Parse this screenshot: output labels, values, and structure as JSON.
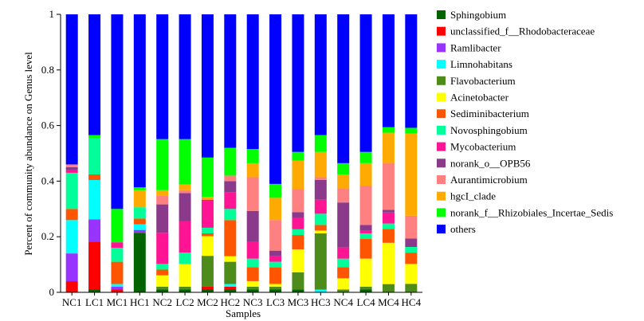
{
  "chart_data": {
    "type": "bar",
    "stacked": true,
    "xlabel": "Samples",
    "ylabel": "Percent of community abundance on Genus level",
    "ylim": [
      0,
      1
    ],
    "yticks": [
      0,
      0.2,
      0.4,
      0.6,
      0.8,
      1
    ],
    "ytick_labels": [
      "0",
      "0.2",
      "0.4",
      "0.6",
      "0.8",
      "1"
    ],
    "legend_position": "right",
    "categories": [
      "NC1",
      "LC1",
      "MC1",
      "HC1",
      "NC2",
      "LC2",
      "MC2",
      "HC2",
      "NC3",
      "LC3",
      "MC3",
      "HC3",
      "NC4",
      "LC4",
      "MC4",
      "HC4"
    ],
    "series": [
      {
        "name": "Sphingobium",
        "color": "#006400",
        "values": [
          0.0,
          0.01,
          0.0,
          0.21,
          0.01,
          0.01,
          0.01,
          0.01,
          0.01,
          0.01,
          0.01,
          0.0,
          0.0,
          0.01,
          0.0,
          0.0
        ]
      },
      {
        "name": "unclassified_f__Rhodobacteraceae",
        "color": "#ff0000",
        "values": [
          0.04,
          0.17,
          0.01,
          0.0,
          0.0,
          0.0,
          0.01,
          0.01,
          0.0,
          0.0,
          0.0,
          0.0,
          0.0,
          0.0,
          0.0,
          0.0
        ]
      },
      {
        "name": "Ramlibacter",
        "color": "#9933ff",
        "values": [
          0.1,
          0.08,
          0.01,
          0.01,
          0.0,
          0.0,
          0.0,
          0.0,
          0.0,
          0.0,
          0.0,
          0.0,
          0.0,
          0.0,
          0.0,
          0.0
        ]
      },
      {
        "name": "Limnohabitans",
        "color": "#00ffff",
        "values": [
          0.12,
          0.14,
          0.01,
          0.02,
          0.0,
          0.0,
          0.0,
          0.01,
          0.0,
          0.0,
          0.0,
          0.01,
          0.0,
          0.0,
          0.0,
          0.0
        ]
      },
      {
        "name": "Flavobacterium",
        "color": "#4d8c1a",
        "values": [
          0.0,
          0.0,
          0.0,
          0.0,
          0.01,
          0.01,
          0.11,
          0.08,
          0.01,
          0.01,
          0.06,
          0.2,
          0.01,
          0.01,
          0.03,
          0.03
        ]
      },
      {
        "name": "Acinetobacter",
        "color": "#ffff00",
        "values": [
          0.0,
          0.0,
          0.0,
          0.0,
          0.04,
          0.08,
          0.07,
          0.02,
          0.02,
          0.01,
          0.08,
          0.01,
          0.04,
          0.1,
          0.15,
          0.07
        ]
      },
      {
        "name": "Sediminibacterium",
        "color": "#ff5500",
        "values": [
          0.04,
          0.02,
          0.08,
          0.02,
          0.02,
          0.0,
          0.01,
          0.13,
          0.05,
          0.06,
          0.05,
          0.02,
          0.04,
          0.07,
          0.05,
          0.04
        ]
      },
      {
        "name": "Novosphingobium",
        "color": "#00ff99",
        "values": [
          0.13,
          0.13,
          0.05,
          0.04,
          0.02,
          0.04,
          0.02,
          0.04,
          0.03,
          0.02,
          0.02,
          0.04,
          0.03,
          0.02,
          0.02,
          0.02
        ]
      },
      {
        "name": "Mycobacterium",
        "color": "#ff1493",
        "values": [
          0.01,
          0.0,
          0.02,
          0.0,
          0.11,
          0.11,
          0.1,
          0.06,
          0.06,
          0.02,
          0.04,
          0.05,
          0.04,
          0.01,
          0.04,
          0.0
        ]
      },
      {
        "name": "norank_o__OPB56",
        "color": "#8b3a8b",
        "values": [
          0.01,
          0.0,
          0.0,
          0.0,
          0.1,
          0.1,
          0.0,
          0.04,
          0.11,
          0.02,
          0.02,
          0.07,
          0.16,
          0.02,
          0.01,
          0.03
        ]
      },
      {
        "name": "Aurantimicrobium",
        "color": "#ff8080",
        "values": [
          0.01,
          0.0,
          0.0,
          0.0,
          0.03,
          0.01,
          0.0,
          0.02,
          0.12,
          0.11,
          0.08,
          0.01,
          0.05,
          0.14,
          0.17,
          0.08
        ]
      },
      {
        "name": "hgcI_clade",
        "color": "#ffaa00",
        "values": [
          0.0,
          0.0,
          0.0,
          0.06,
          0.02,
          0.02,
          0.01,
          0.0,
          0.05,
          0.08,
          0.1,
          0.09,
          0.05,
          0.08,
          0.11,
          0.29
        ]
      },
      {
        "name": "norank_f__Rhizobiales_Incertae_Sedis",
        "color": "#00ff00",
        "values": [
          0.0,
          0.01,
          0.12,
          0.01,
          0.18,
          0.16,
          0.14,
          0.1,
          0.05,
          0.05,
          0.03,
          0.06,
          0.04,
          0.04,
          0.02,
          0.02
        ]
      },
      {
        "name": "others",
        "color": "#0000ff",
        "values": [
          0.54,
          0.43,
          0.7,
          0.61,
          0.44,
          0.44,
          0.51,
          0.48,
          0.48,
          0.61,
          0.48,
          0.43,
          0.53,
          0.49,
          0.41,
          0.4
        ]
      }
    ]
  }
}
